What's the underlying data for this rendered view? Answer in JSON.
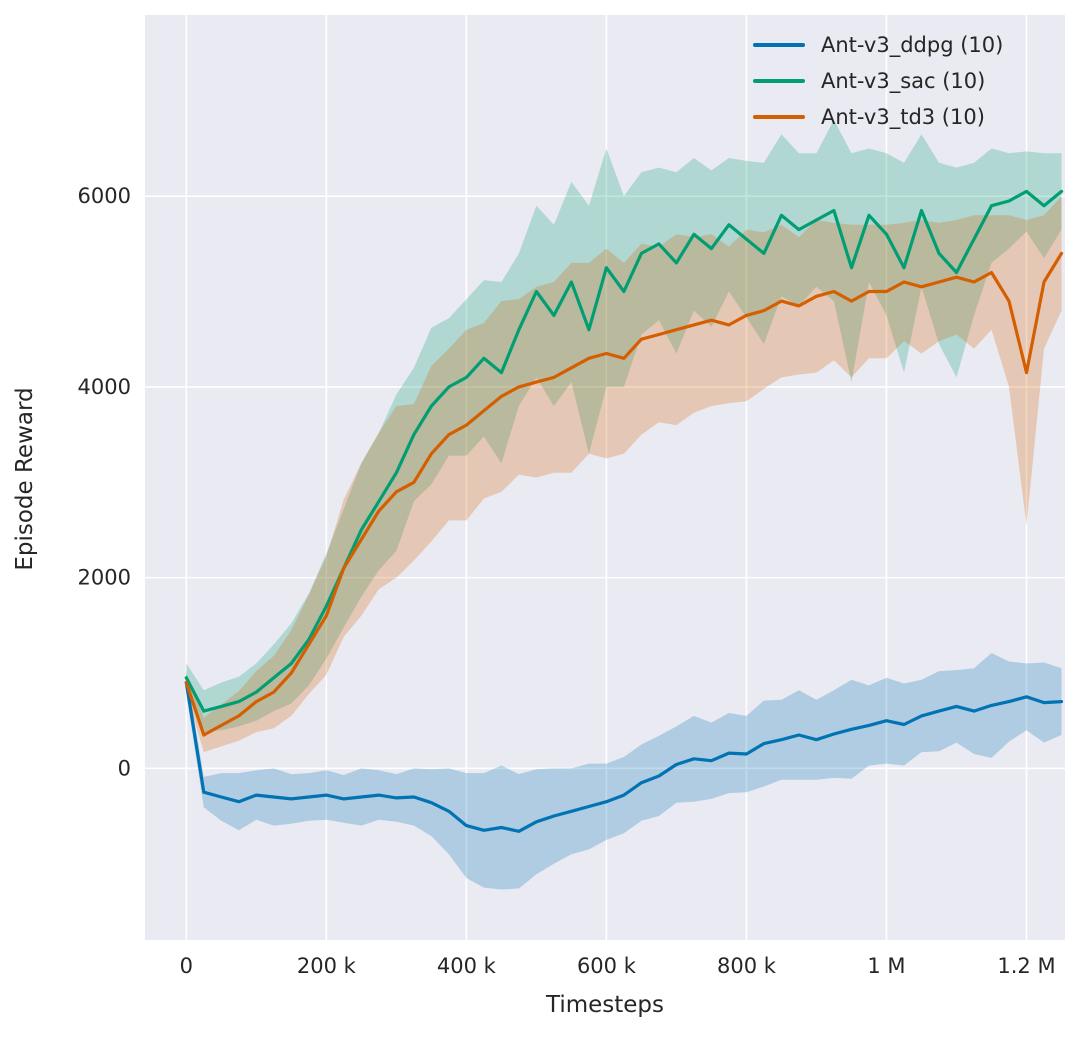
{
  "figure": {
    "background": "#ffffff",
    "plot_background": "#eaeaf2",
    "grid_color": "#ffffff",
    "text_color": "#262626"
  },
  "chart_data": {
    "type": "line",
    "title": "",
    "xlabel": "Timesteps",
    "ylabel": "Episode Reward",
    "x_unit": "thousand timesteps",
    "xlim_thousands": [
      -59,
      1255
    ],
    "ylim": [
      -1800,
      7900
    ],
    "grid": true,
    "legend_position": "upper right",
    "band_opacity": 0.25,
    "x_ticks": [
      {
        "value": 0,
        "label": "0"
      },
      {
        "value": 200,
        "label": "200 k"
      },
      {
        "value": 400,
        "label": "400 k"
      },
      {
        "value": 600,
        "label": "600 k"
      },
      {
        "value": 800,
        "label": "800 k"
      },
      {
        "value": 1000,
        "label": "1 M"
      },
      {
        "value": 1200,
        "label": "1.2 M"
      }
    ],
    "y_ticks": [
      {
        "value": 0,
        "label": "0"
      },
      {
        "value": 2000,
        "label": "2000"
      },
      {
        "value": 4000,
        "label": "4000"
      },
      {
        "value": 6000,
        "label": "6000"
      }
    ],
    "x_thousands": [
      0,
      25,
      50,
      75,
      100,
      125,
      150,
      175,
      200,
      225,
      250,
      275,
      300,
      325,
      350,
      375,
      400,
      425,
      450,
      475,
      500,
      525,
      550,
      575,
      600,
      625,
      650,
      675,
      700,
      725,
      750,
      775,
      800,
      825,
      850,
      875,
      900,
      925,
      950,
      975,
      1000,
      1025,
      1050,
      1075,
      1100,
      1125,
      1150,
      1175,
      1200,
      1225,
      1250
    ],
    "series": [
      {
        "name": "Ant-v3_ddpg (10)",
        "color": "#0173b2",
        "mean": [
          900,
          -250,
          -300,
          -350,
          -280,
          -300,
          -320,
          -300,
          -280,
          -320,
          -300,
          -280,
          -310,
          -300,
          -360,
          -450,
          -600,
          -650,
          -620,
          -660,
          -560,
          -500,
          -450,
          -400,
          -350,
          -280,
          -150,
          -80,
          40,
          100,
          80,
          160,
          150,
          260,
          300,
          350,
          300,
          360,
          410,
          450,
          500,
          460,
          550,
          600,
          650,
          600,
          660,
          700,
          750,
          690,
          700
        ],
        "band_halfwidth": [
          120,
          160,
          250,
          300,
          260,
          300,
          260,
          250,
          260,
          250,
          300,
          260,
          250,
          300,
          350,
          450,
          550,
          600,
          650,
          600,
          550,
          500,
          450,
          450,
          400,
          400,
          400,
          420,
          400,
          450,
          400,
          420,
          400,
          450,
          420,
          470,
          420,
          460,
          520,
          420,
          450,
          430,
          380,
          420,
          380,
          450,
          550,
          420,
          350,
          420,
          350
        ]
      },
      {
        "name": "Ant-v3_sac (10)",
        "color": "#029e73",
        "mean": [
          950,
          600,
          650,
          700,
          800,
          950,
          1100,
          1350,
          1700,
          2100,
          2500,
          2800,
          3100,
          3500,
          3800,
          4000,
          4100,
          4300,
          4150,
          4600,
          5000,
          4750,
          5100,
          4600,
          5250,
          5000,
          5400,
          5500,
          5300,
          5600,
          5450,
          5700,
          5550,
          5400,
          5800,
          5650,
          5750,
          5850,
          5250,
          5800,
          5600,
          5250,
          5850,
          5400,
          5200,
          5550,
          5900,
          5950,
          6050,
          5900,
          6050
        ],
        "band_halfwidth": [
          150,
          220,
          250,
          260,
          300,
          350,
          420,
          480,
          550,
          620,
          700,
          720,
          820,
          700,
          820,
          720,
          820,
          820,
          950,
          800,
          900,
          950,
          1050,
          1300,
          1250,
          1000,
          850,
          800,
          950,
          800,
          820,
          700,
          820,
          950,
          850,
          800,
          700,
          950,
          1200,
          700,
          850,
          1100,
          800,
          950,
          1100,
          800,
          600,
          500,
          420,
          550,
          400
        ]
      },
      {
        "name": "Ant-v3_td3 (10)",
        "color": "#d55e00",
        "mean": [
          900,
          350,
          450,
          550,
          700,
          800,
          1000,
          1300,
          1600,
          2100,
          2400,
          2700,
          2900,
          3000,
          3300,
          3500,
          3600,
          3750,
          3900,
          4000,
          4050,
          4100,
          4200,
          4300,
          4350,
          4300,
          4500,
          4550,
          4600,
          4650,
          4700,
          4650,
          4750,
          4800,
          4900,
          4850,
          4950,
          5000,
          4900,
          5000,
          5000,
          5100,
          5050,
          5100,
          5150,
          5100,
          5200,
          4900,
          4150,
          5100,
          5400
        ],
        "band_halfwidth": [
          100,
          180,
          220,
          260,
          320,
          380,
          450,
          520,
          620,
          720,
          800,
          820,
          900,
          820,
          920,
          900,
          1000,
          920,
          1000,
          920,
          1000,
          1000,
          1100,
          1000,
          1100,
          1000,
          1000,
          920,
          1000,
          920,
          900,
          820,
          900,
          820,
          800,
          720,
          800,
          720,
          800,
          700,
          700,
          620,
          700,
          620,
          600,
          700,
          600,
          900,
          1600,
          700,
          600
        ]
      }
    ]
  }
}
